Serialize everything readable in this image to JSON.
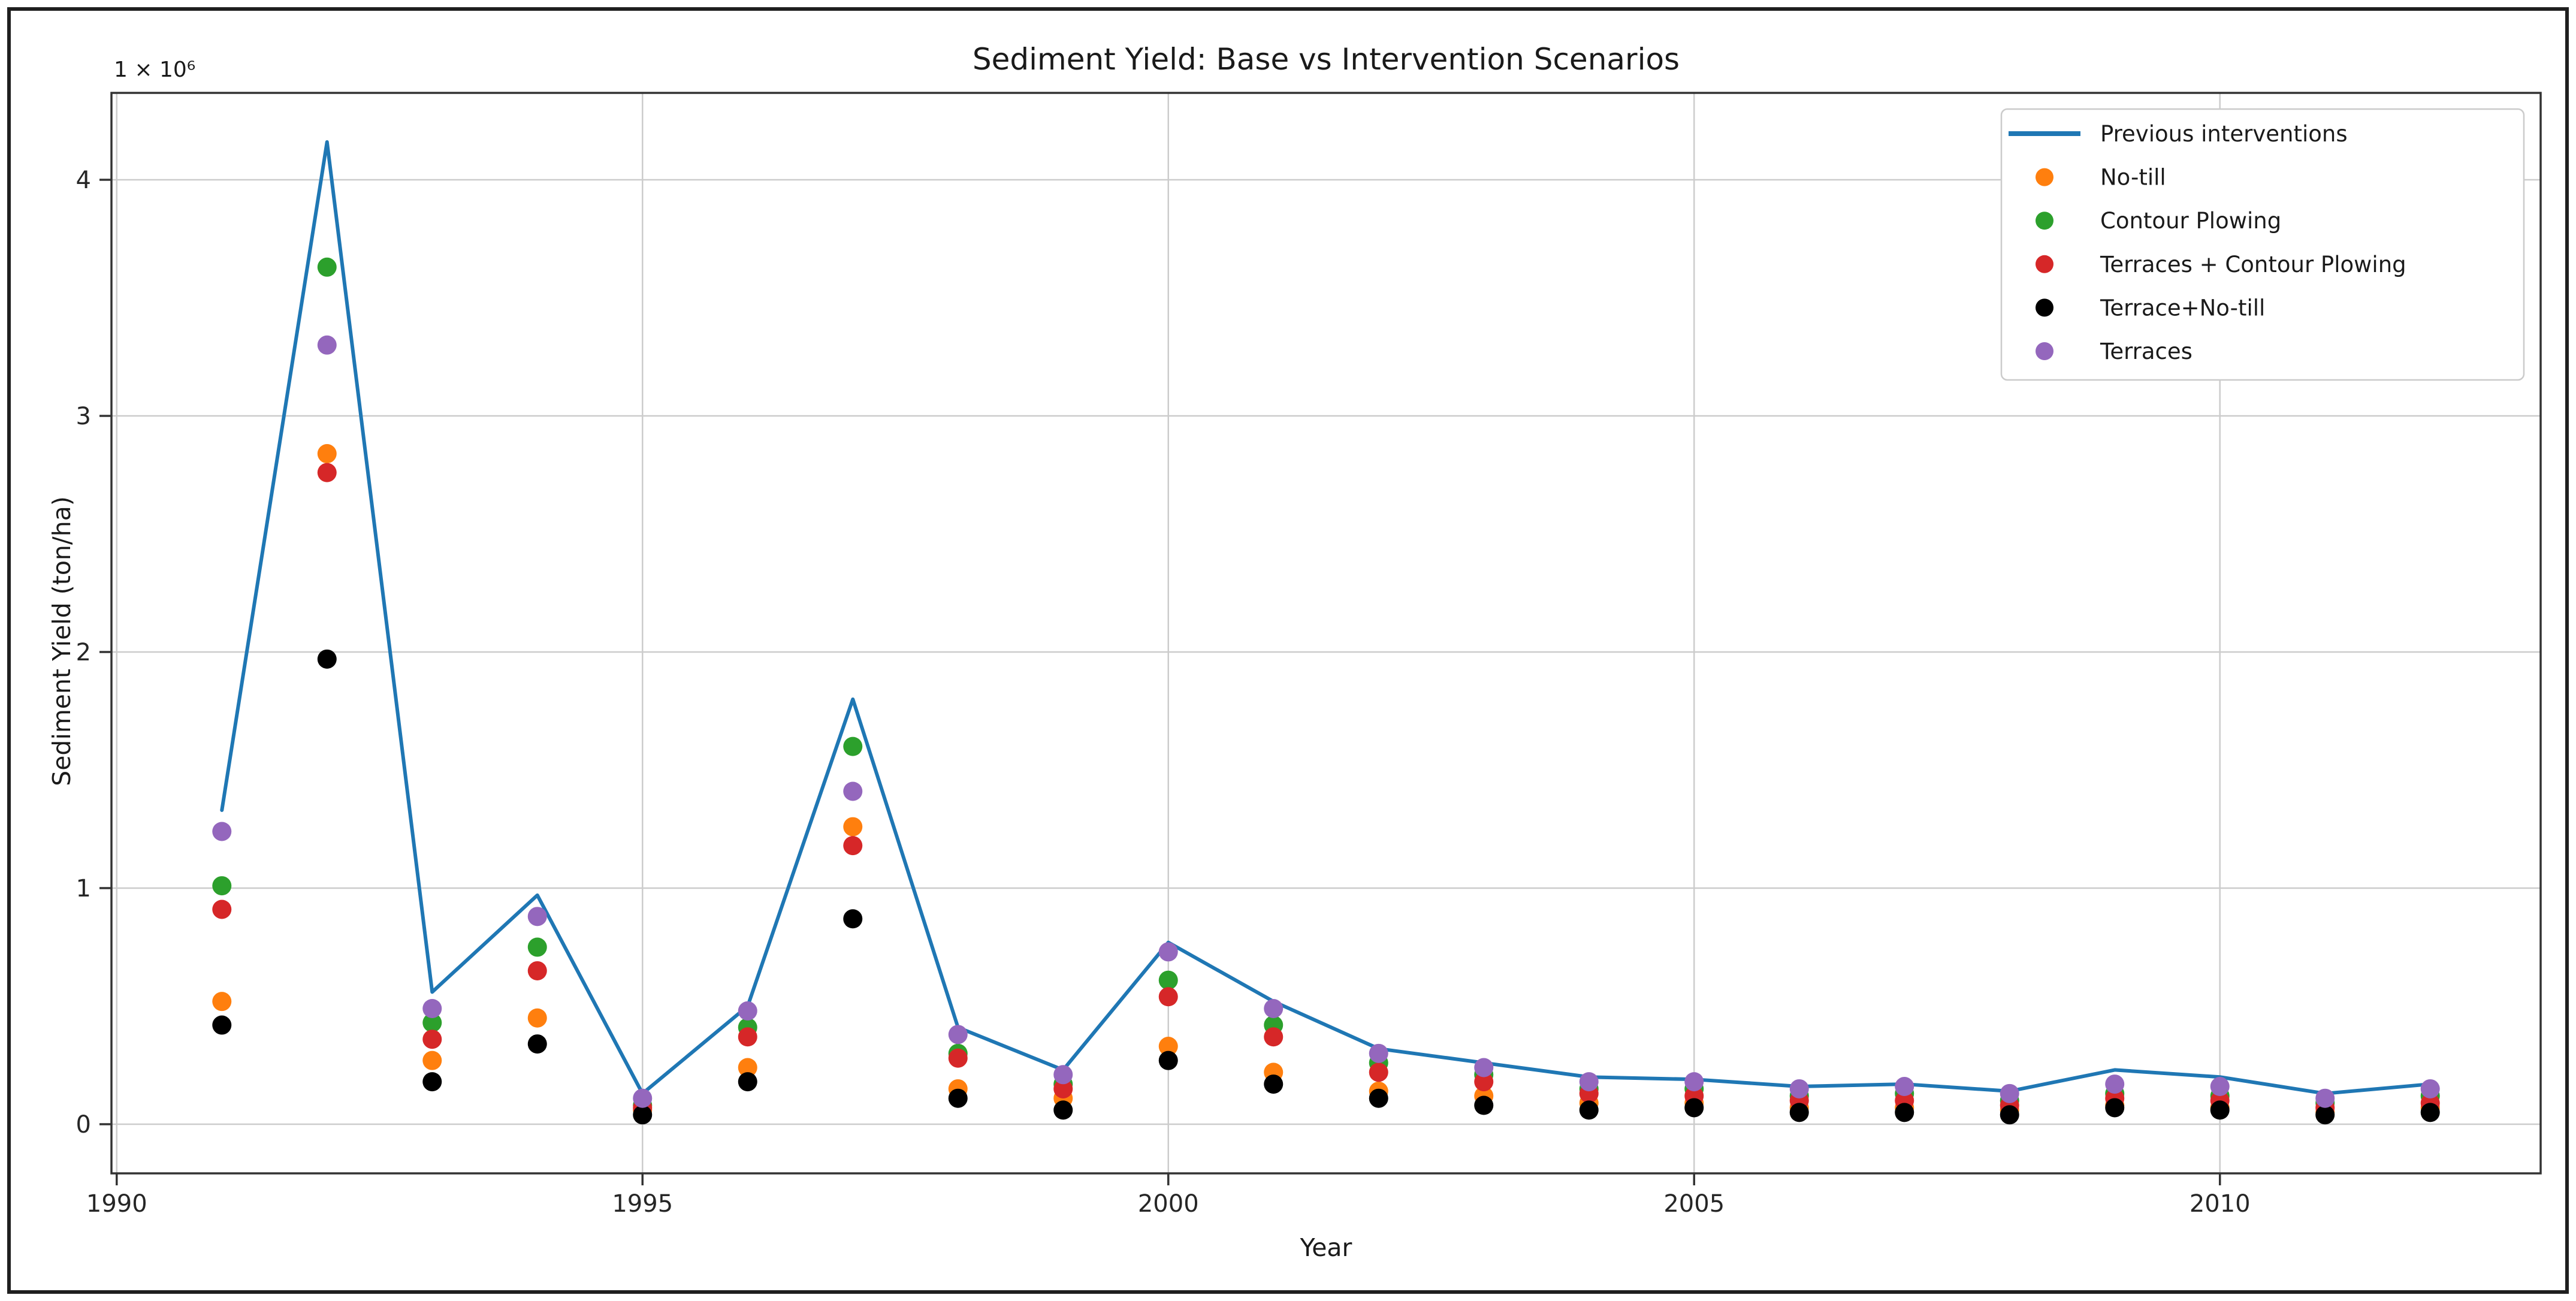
{
  "window": {
    "background": "#ffffff",
    "border_color": "#1f1f1f"
  },
  "chart_data": {
    "type": "line",
    "title": "Sediment Yield: Base vs Intervention Scenarios",
    "xlabel": "Year",
    "ylabel": "Sediment Yield (ton/ha)",
    "y_offset_label": "1 × 10⁶",
    "value_unit": "×10⁶ ton/ha",
    "x": [
      1991,
      1992,
      1993,
      1994,
      1995,
      1996,
      1997,
      1998,
      1999,
      2000,
      2001,
      2002,
      2003,
      2004,
      2005,
      2006,
      2007,
      2008,
      2009,
      2010,
      2011,
      2012
    ],
    "xlim": [
      1989.95,
      2013.05
    ],
    "ylim": [
      -0.208,
      4.368
    ],
    "xticks": [
      1990,
      1995,
      2000,
      2005,
      2010
    ],
    "yticks": [
      0,
      1,
      2,
      3,
      4
    ],
    "grid": true,
    "grid_color": "#cccccc",
    "spine_color": "#333333",
    "legend": {
      "position": "upper right",
      "border_color": "#cbcbcb"
    },
    "series": [
      {
        "name": "Previous interventions",
        "style": "line",
        "color": "#1f77b4",
        "values": [
          1.33,
          4.16,
          0.56,
          0.97,
          0.13,
          0.5,
          1.8,
          0.41,
          0.23,
          0.77,
          0.52,
          0.32,
          0.26,
          0.2,
          0.19,
          0.16,
          0.17,
          0.14,
          0.23,
          0.2,
          0.13,
          0.17
        ]
      },
      {
        "name": "No-till",
        "style": "scatter",
        "color": "#ff7f0e",
        "values": [
          0.52,
          2.84,
          0.27,
          0.45,
          0.06,
          0.24,
          1.26,
          0.15,
          0.11,
          0.33,
          0.22,
          0.14,
          0.12,
          0.09,
          0.09,
          0.07,
          0.07,
          0.06,
          0.08,
          0.07,
          0.05,
          0.07
        ]
      },
      {
        "name": "Contour Plowing",
        "style": "scatter",
        "color": "#2ca02c",
        "values": [
          1.01,
          3.63,
          0.43,
          0.75,
          0.08,
          0.41,
          1.6,
          0.3,
          0.17,
          0.61,
          0.42,
          0.26,
          0.21,
          0.15,
          0.15,
          0.12,
          0.13,
          0.1,
          0.13,
          0.12,
          0.09,
          0.12
        ]
      },
      {
        "name": "Terraces + Contour Plowing",
        "style": "scatter",
        "color": "#d62728",
        "values": [
          0.91,
          2.76,
          0.36,
          0.65,
          0.07,
          0.37,
          1.18,
          0.28,
          0.15,
          0.54,
          0.37,
          0.22,
          0.18,
          0.13,
          0.12,
          0.1,
          0.1,
          0.08,
          0.11,
          0.1,
          0.07,
          0.09
        ]
      },
      {
        "name": "Terrace+No-till",
        "style": "scatter",
        "color": "#000000",
        "values": [
          0.42,
          1.97,
          0.18,
          0.34,
          0.04,
          0.18,
          0.87,
          0.11,
          0.06,
          0.27,
          0.17,
          0.11,
          0.08,
          0.06,
          0.07,
          0.05,
          0.05,
          0.04,
          0.07,
          0.06,
          0.04,
          0.05
        ]
      },
      {
        "name": "Terraces",
        "style": "scatter",
        "color": "#9467bd",
        "values": [
          1.24,
          3.3,
          0.49,
          0.88,
          0.11,
          0.48,
          1.41,
          0.38,
          0.21,
          0.73,
          0.49,
          0.3,
          0.24,
          0.18,
          0.18,
          0.15,
          0.16,
          0.13,
          0.17,
          0.16,
          0.11,
          0.15
        ]
      }
    ]
  }
}
